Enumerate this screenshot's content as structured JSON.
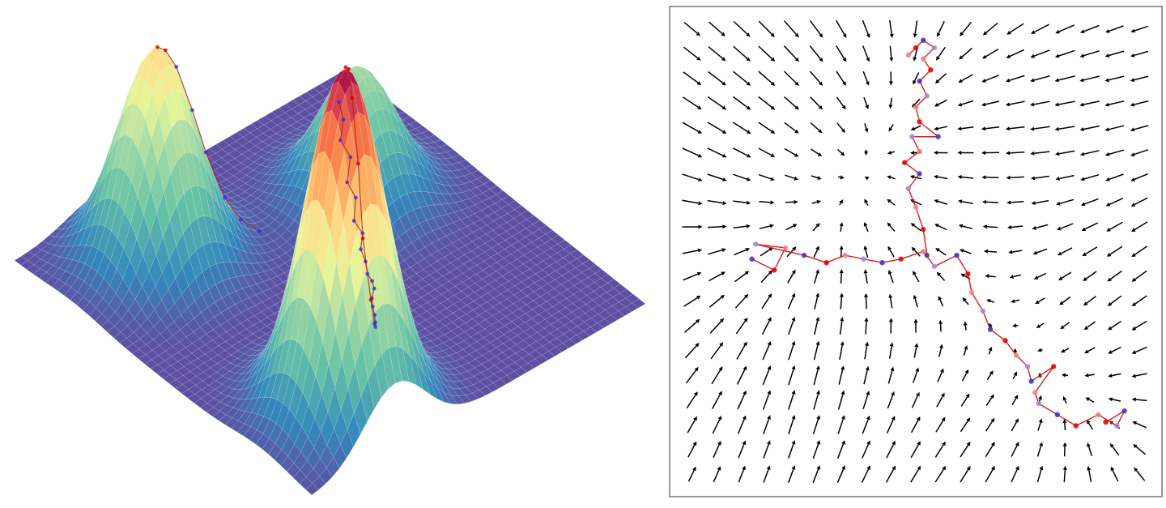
{
  "figure": {
    "panels": 2
  },
  "chart_data": [
    {
      "type": "surface",
      "description_of_kind": "3d-surface-with-trajectory",
      "x_range": [
        -3,
        3
      ],
      "y_range": [
        -3,
        3
      ],
      "z_range": [
        0,
        1
      ],
      "grid": true,
      "surface_colormap": "Spectral_r",
      "peaks": [
        {
          "label": "",
          "x": 2.0,
          "y": -1.5,
          "height": 1.0,
          "sigma": 0.55
        },
        {
          "label": "",
          "x": -1.8,
          "y": -1.5,
          "height": 0.62,
          "sigma": 0.55
        },
        {
          "label": "",
          "x": -1.0,
          "y": 1.4,
          "height": 0.38,
          "sigma": 0.55
        }
      ],
      "trajectory": {
        "colors": {
          "line": "#b22222",
          "early": "#3b2fd0",
          "late": "#d40000"
        },
        "points": [
          [
            -1.0,
            1.05
          ],
          [
            -0.85,
            1.0
          ],
          [
            -0.8,
            0.9
          ],
          [
            -0.62,
            0.92
          ],
          [
            -0.55,
            0.8
          ],
          [
            -0.4,
            0.82
          ],
          [
            -0.3,
            0.7
          ],
          [
            -0.15,
            0.72
          ],
          [
            -0.05,
            0.6
          ],
          [
            0.1,
            0.55
          ],
          [
            0.25,
            0.45
          ],
          [
            0.38,
            0.42
          ],
          [
            0.5,
            0.35
          ],
          [
            0.62,
            0.2
          ],
          [
            0.75,
            0.1
          ],
          [
            0.9,
            0.0
          ],
          [
            1.05,
            -0.12
          ],
          [
            1.2,
            -0.25
          ],
          [
            1.35,
            -0.4
          ],
          [
            1.5,
            -0.6
          ],
          [
            1.62,
            -0.85
          ],
          [
            1.75,
            -1.05
          ],
          [
            1.85,
            -1.25
          ],
          [
            1.95,
            -1.4
          ],
          [
            2.0,
            -1.5
          ]
        ],
        "points_second": [
          [
            -1.2,
            -0.2
          ],
          [
            -1.35,
            -0.4
          ],
          [
            -1.45,
            -0.6
          ],
          [
            -1.55,
            -0.85
          ],
          [
            -1.6,
            -1.05
          ],
          [
            -1.7,
            -1.25
          ],
          [
            -1.75,
            -1.4
          ],
          [
            -1.8,
            -1.5
          ]
        ]
      }
    },
    {
      "type": "quiver",
      "description_of_kind": "vector-field-with-trajectory",
      "x_range": [
        -3,
        3
      ],
      "y_range": [
        -3,
        3
      ],
      "grid_n": 19,
      "arrow_color": "#000000",
      "frame_color": "#333333",
      "sinks": [
        {
          "x": -2.0,
          "y": 0.0,
          "sigma": 1.0
        },
        {
          "x": 0.2,
          "y": 2.6,
          "sigma": 1.0
        },
        {
          "x": 2.3,
          "y": -2.1,
          "sigma": 1.0
        }
      ],
      "trajectory": {
        "line_color": "#e11b1b",
        "point_colors": [
          "#3b2fd0",
          "#e00000",
          "#f08080",
          "#9b8cd6"
        ],
        "points": [
          [
            -2.2,
            -0.1
          ],
          [
            -1.9,
            -0.25
          ],
          [
            -1.75,
            0.05
          ],
          [
            -2.15,
            0.1
          ],
          [
            -1.5,
            -0.05
          ],
          [
            -1.2,
            -0.15
          ],
          [
            -0.95,
            -0.05
          ],
          [
            -0.7,
            -0.1
          ],
          [
            -0.45,
            -0.15
          ],
          [
            -0.2,
            -0.1
          ],
          [
            0.1,
            0.0
          ],
          [
            0.25,
            -0.2
          ],
          [
            0.55,
            -0.05
          ],
          [
            0.7,
            -0.3
          ],
          [
            0.75,
            -0.55
          ],
          [
            0.9,
            -0.8
          ],
          [
            1.0,
            -1.05
          ],
          [
            1.2,
            -1.2
          ],
          [
            1.35,
            -1.4
          ],
          [
            1.5,
            -1.55
          ],
          [
            1.55,
            -1.75
          ],
          [
            1.85,
            -1.55
          ],
          [
            1.6,
            -1.9
          ],
          [
            1.65,
            -2.05
          ],
          [
            1.9,
            -2.2
          ],
          [
            2.15,
            -2.35
          ],
          [
            2.45,
            -2.2
          ],
          [
            2.7,
            -2.35
          ],
          [
            2.8,
            -2.15
          ],
          [
            2.55,
            -2.3
          ]
        ],
        "points_branch": [
          [
            0.15,
            -0.05
          ],
          [
            0.1,
            0.3
          ],
          [
            0.0,
            0.6
          ],
          [
            -0.1,
            0.85
          ],
          [
            0.05,
            1.05
          ],
          [
            -0.15,
            1.2
          ],
          [
            0.05,
            1.35
          ],
          [
            -0.05,
            1.55
          ],
          [
            0.3,
            1.55
          ],
          [
            0.05,
            1.75
          ],
          [
            0.0,
            1.95
          ],
          [
            0.15,
            2.1
          ],
          [
            0.05,
            2.3
          ],
          [
            0.2,
            2.45
          ],
          [
            0.1,
            2.6
          ],
          [
            0.25,
            2.75
          ],
          [
            0.1,
            2.85
          ],
          [
            0.0,
            2.75
          ],
          [
            -0.1,
            2.65
          ]
        ]
      }
    }
  ]
}
